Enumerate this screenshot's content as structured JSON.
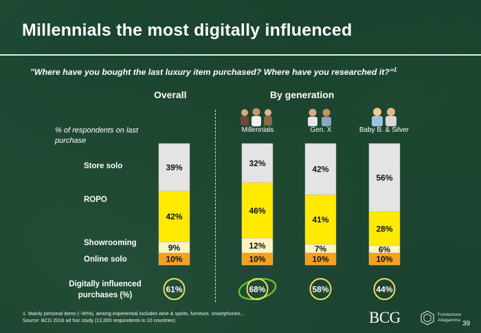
{
  "header": {
    "title": "Millennials the most digitally influenced",
    "question": "\"Where have you bought the last luxury item purchased? Where have you researched it?\"",
    "question_sup": "1"
  },
  "sections": {
    "overall": "Overall",
    "by_generation": "By generation"
  },
  "axis_note": "% of respondents on last purchase",
  "rows": {
    "store_solo": "Store solo",
    "ropo": "ROPO",
    "showrooming": "Showrooming",
    "online_solo": "Online solo",
    "digitally_influenced": "Digitally influenced purchases (%)"
  },
  "generations": [
    "Millennials",
    "Gen. X",
    "Baby B. & Silver"
  ],
  "colors": {
    "online_solo": "#f3a11f",
    "showrooming": "#fdf5bf",
    "ropo": "#ffea00",
    "store_solo": "#e4e4e4",
    "circle_yellow": "#f0e35a",
    "circle_highlight": "#63c430"
  },
  "chart_data": {
    "type": "bar",
    "stacked": true,
    "categories": [
      "Overall",
      "Millennials",
      "Gen. X",
      "Baby B. & Silver"
    ],
    "series": [
      {
        "name": "Online solo",
        "values": [
          10,
          10,
          10,
          10
        ],
        "labels": [
          "10%",
          "10%",
          "10%",
          "10%"
        ]
      },
      {
        "name": "Showrooming",
        "values": [
          9,
          12,
          7,
          6
        ],
        "labels": [
          "9%",
          "12%",
          "7%",
          "6%"
        ]
      },
      {
        "name": "ROPO",
        "values": [
          42,
          46,
          41,
          28
        ],
        "labels": [
          "42%",
          "46%",
          "41%",
          "28%"
        ]
      },
      {
        "name": "Store solo",
        "values": [
          39,
          32,
          42,
          56
        ],
        "labels": [
          "39%",
          "32%",
          "42%",
          "56%"
        ]
      }
    ],
    "digitally_influenced": {
      "values": [
        61,
        68,
        58,
        44
      ],
      "labels": [
        "61%",
        "68%",
        "58%",
        "44%"
      ],
      "highlight": "Millennials"
    },
    "ylim": [
      0,
      100
    ]
  },
  "footer": {
    "footnote_line1": "1. Mainly personal items (~90%), among experiential includes wine & spirits, furniture, smartphones...",
    "footnote_line2": "Source: BCG 2016 ad hoc study (12,000 respondents in 10 countries)",
    "logo": "BCG",
    "partner_line1": "Fondazione",
    "partner_line2": "Altagamma",
    "page": "39"
  }
}
